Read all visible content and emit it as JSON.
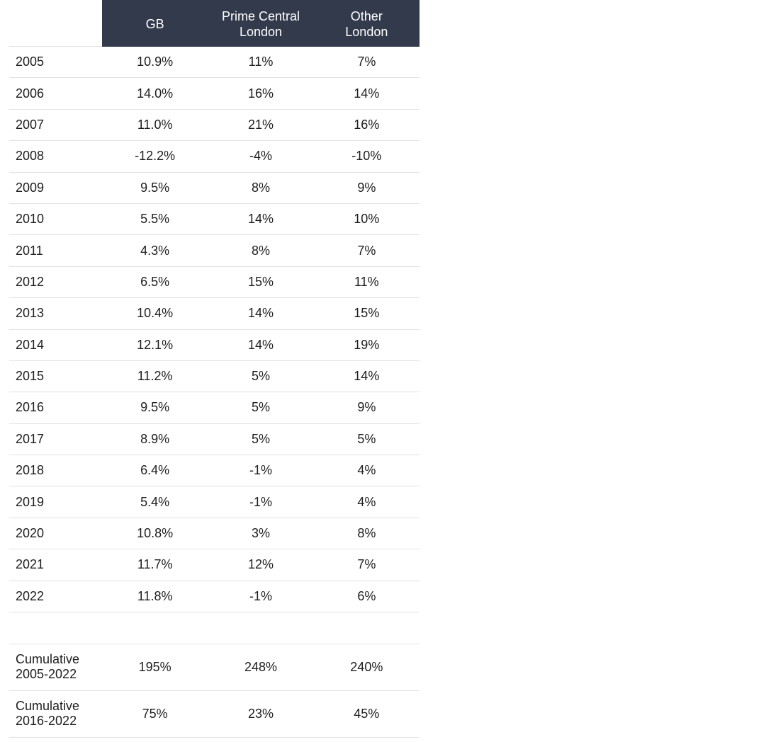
{
  "chart_data": {
    "type": "table",
    "columns": [
      "",
      "GB",
      "Prime Central\nLondon",
      "Other\nLondon"
    ],
    "rows": [
      {
        "label": "2005",
        "values": [
          "10.9%",
          "11%",
          "7%"
        ]
      },
      {
        "label": "2006",
        "values": [
          "14.0%",
          "16%",
          "14%"
        ]
      },
      {
        "label": "2007",
        "values": [
          "11.0%",
          "21%",
          "16%"
        ]
      },
      {
        "label": "2008",
        "values": [
          "-12.2%",
          "-4%",
          "-10%"
        ]
      },
      {
        "label": "2009",
        "values": [
          "9.5%",
          "8%",
          "9%"
        ]
      },
      {
        "label": "2010",
        "values": [
          "5.5%",
          "14%",
          "10%"
        ]
      },
      {
        "label": "2011",
        "values": [
          "4.3%",
          "8%",
          "7%"
        ]
      },
      {
        "label": "2012",
        "values": [
          "6.5%",
          "15%",
          "11%"
        ]
      },
      {
        "label": "2013",
        "values": [
          "10.4%",
          "14%",
          "15%"
        ]
      },
      {
        "label": "2014",
        "values": [
          "12.1%",
          "14%",
          "19%"
        ]
      },
      {
        "label": "2015",
        "values": [
          "11.2%",
          "5%",
          "14%"
        ]
      },
      {
        "label": "2016",
        "values": [
          "9.5%",
          "5%",
          "9%"
        ]
      },
      {
        "label": "2017",
        "values": [
          "8.9%",
          "5%",
          "5%"
        ]
      },
      {
        "label": "2018",
        "values": [
          "6.4%",
          "-1%",
          "4%"
        ]
      },
      {
        "label": "2019",
        "values": [
          "5.4%",
          "-1%",
          "4%"
        ]
      },
      {
        "label": "2020",
        "values": [
          "10.8%",
          "3%",
          "8%"
        ]
      },
      {
        "label": "2021",
        "values": [
          "11.7%",
          "12%",
          "7%"
        ]
      },
      {
        "label": "2022",
        "values": [
          "11.8%",
          "-1%",
          "6%"
        ]
      }
    ],
    "summary_rows": [
      {
        "label": "Cumulative\n2005-2022",
        "values": [
          "195%",
          "248%",
          "240%"
        ]
      },
      {
        "label": "Cumulative\n2016-2022",
        "values": [
          "75%",
          "23%",
          "45%"
        ]
      }
    ]
  },
  "colors": {
    "header_background": "#333a4c",
    "header_text": "#ffffff",
    "row_divider": "#e2e2e2",
    "body_text": "#1e1e1e"
  }
}
